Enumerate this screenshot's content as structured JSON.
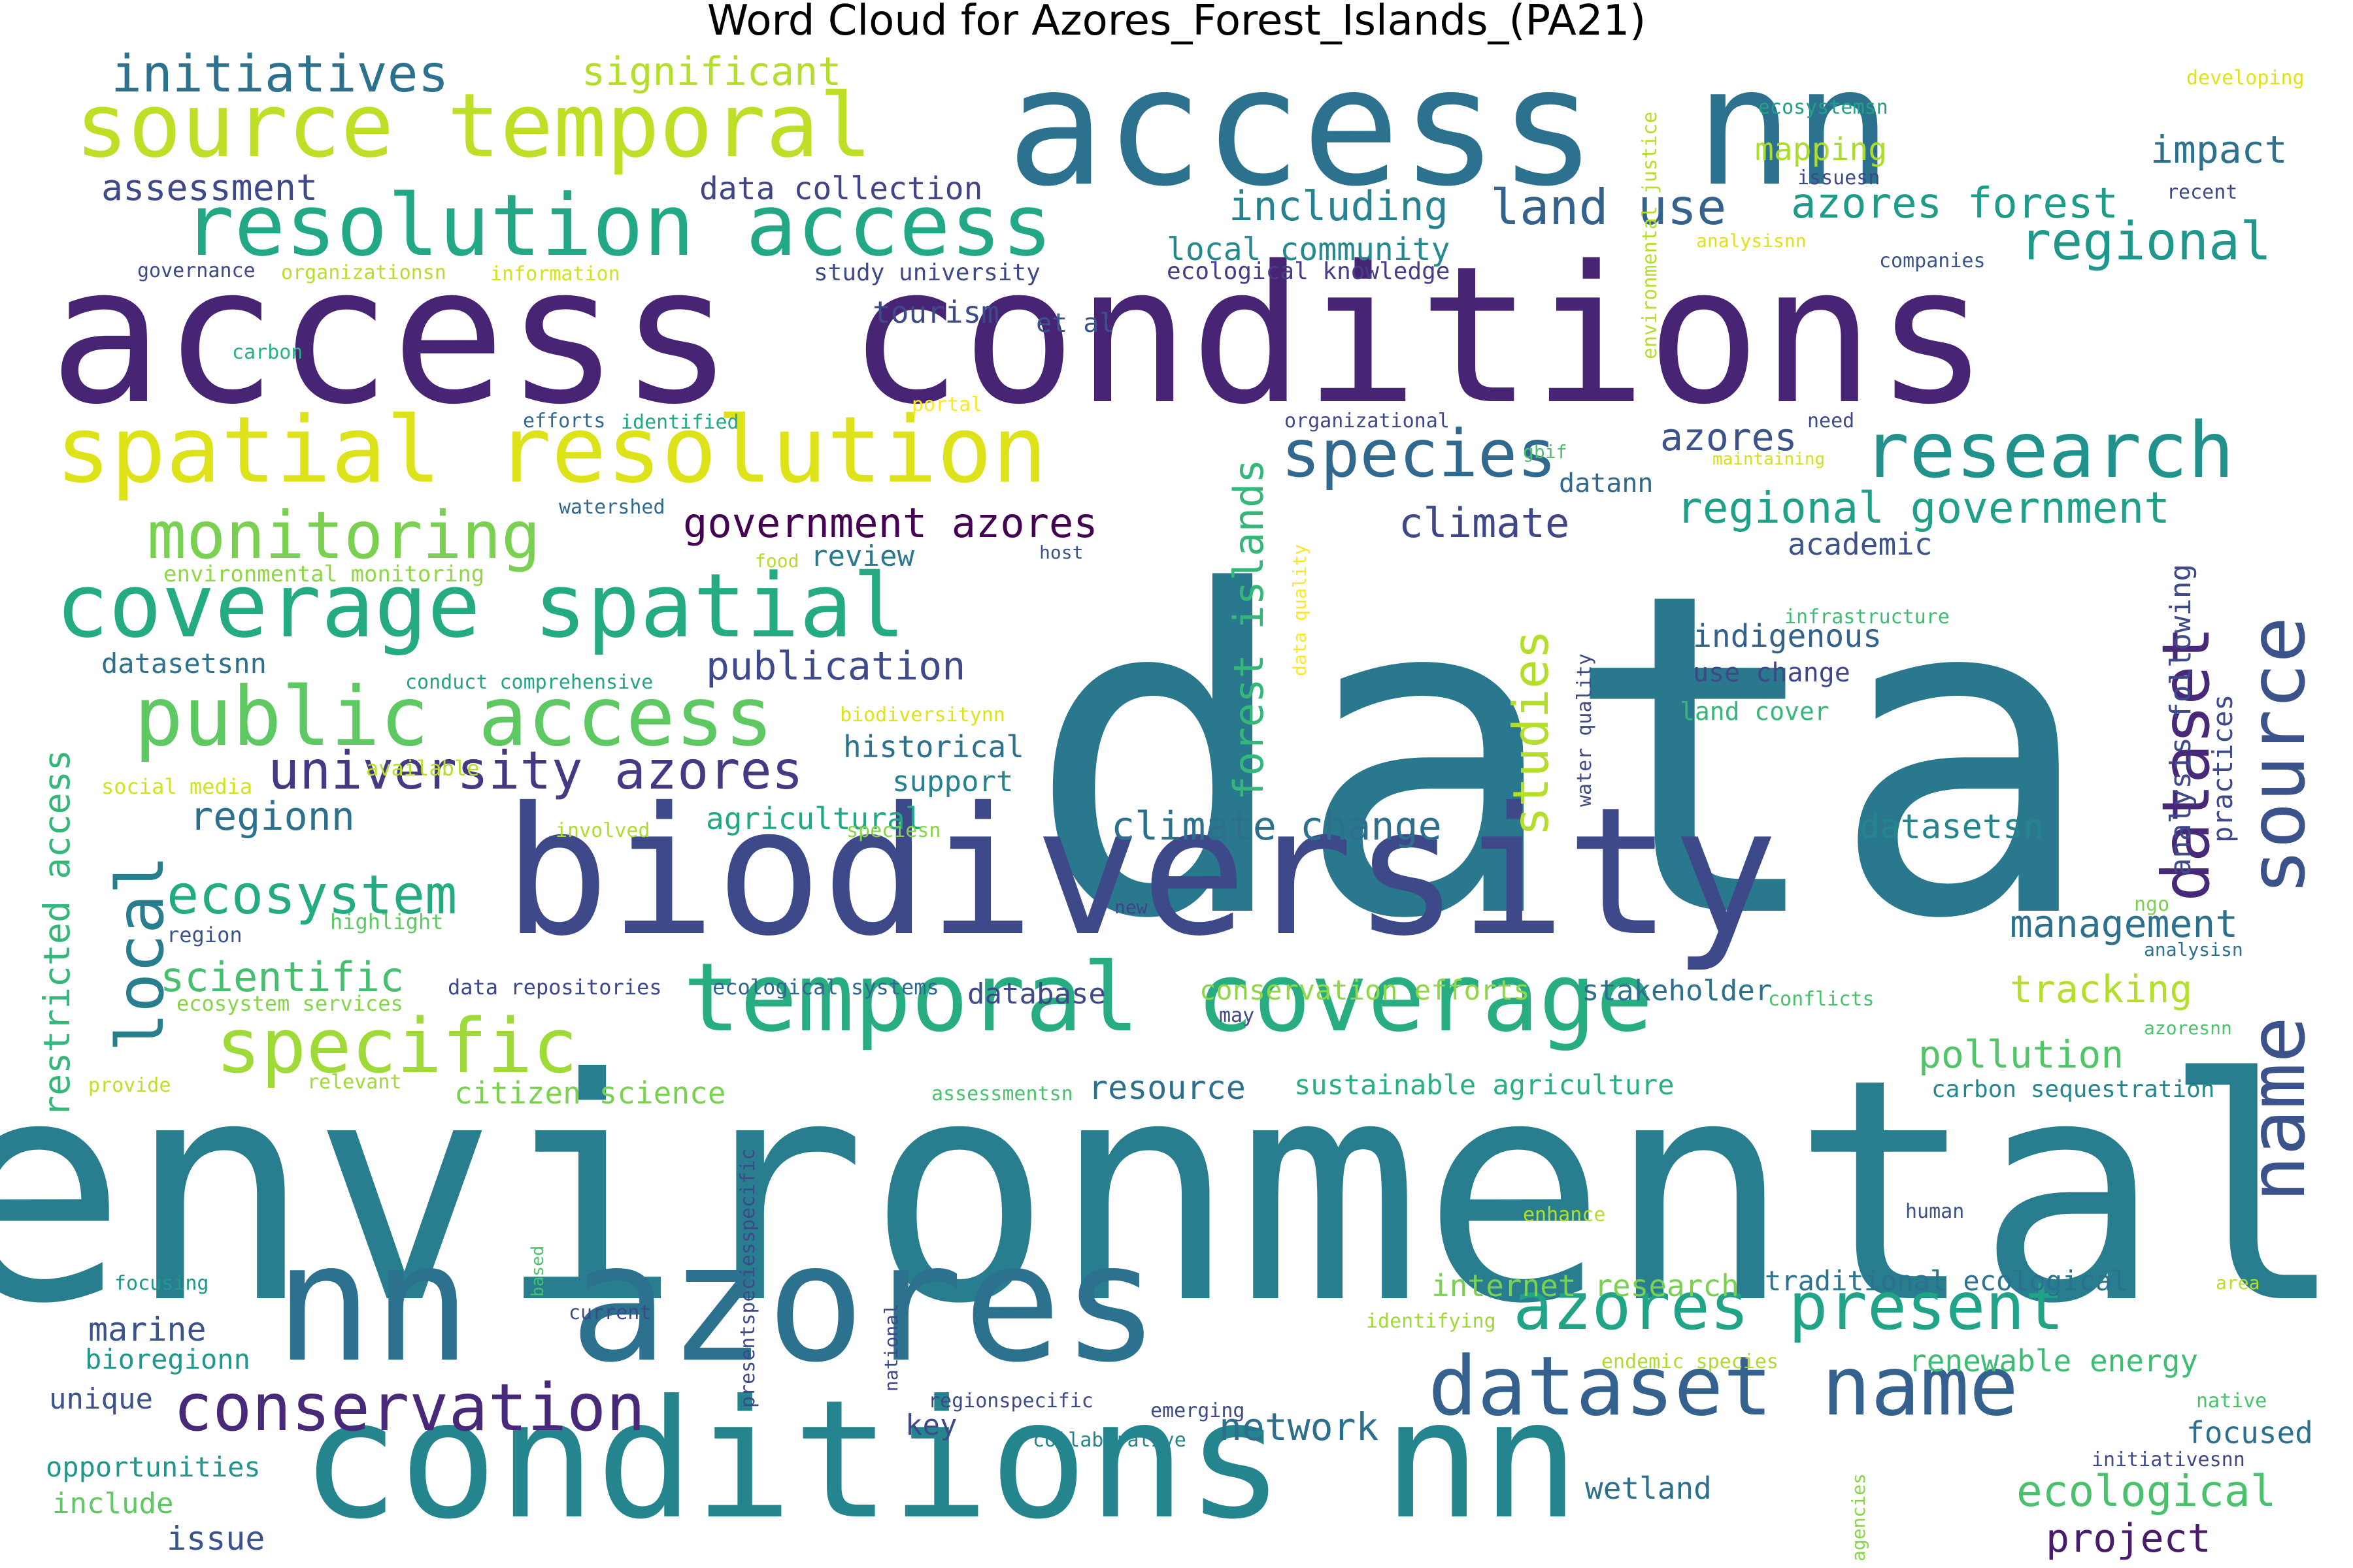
{
  "title": "Word Cloud for Azores_Forest_Islands_(PA21)",
  "words": [
    {
      "text": "data",
      "color": "#2a788e"
    },
    {
      "text": "environmental",
      "color": "#287d8e"
    },
    {
      "text": "access conditions",
      "color": "#482475"
    },
    {
      "text": "access nn",
      "color": "#2c728e"
    },
    {
      "text": "biodiversity",
      "color": "#3e4989"
    },
    {
      "text": "conditions nn",
      "color": "#25858e"
    },
    {
      "text": "nn azores",
      "color": "#2c718e"
    },
    {
      "text": "temporal coverage",
      "color": "#27ad81"
    },
    {
      "text": "spatial resolution",
      "color": "#dde318"
    },
    {
      "text": "resolution access",
      "color": "#22a884"
    },
    {
      "text": "source temporal",
      "color": "#bddf26"
    },
    {
      "text": "coverage spatial",
      "color": "#25ab82"
    },
    {
      "text": "public access",
      "color": "#5ec962"
    },
    {
      "text": "specific",
      "color": "#a0da39"
    },
    {
      "text": "dataset name",
      "color": "#34618d"
    },
    {
      "text": "research",
      "color": "#21918c"
    },
    {
      "text": "source",
      "color": "#3b528b"
    },
    {
      "text": "name",
      "color": "#3b528b"
    },
    {
      "text": "dataset",
      "color": "#482878"
    },
    {
      "text": "monitoring",
      "color": "#7ad151"
    },
    {
      "text": "species",
      "color": "#31688e"
    },
    {
      "text": "conservation",
      "color": "#482878"
    },
    {
      "text": "azores present",
      "color": "#20a386"
    },
    {
      "text": "university azores",
      "color": "#443983"
    },
    {
      "text": "local",
      "color": "#287d8e"
    },
    {
      "text": "ecosystem",
      "color": "#25ab82"
    },
    {
      "text": "initiatives",
      "color": "#2c728e"
    },
    {
      "text": "regional",
      "color": "#1f988b"
    },
    {
      "text": "regional government",
      "color": "#1fa088"
    },
    {
      "text": "government azores",
      "color": "#440154"
    },
    {
      "text": "studies",
      "color": "#b5de2b"
    },
    {
      "text": "forest islands",
      "color": "#35b779"
    },
    {
      "text": "land use",
      "color": "#33638d"
    },
    {
      "text": "azores forest",
      "color": "#1e9c89"
    },
    {
      "text": "significant",
      "color": "#b5de2b"
    },
    {
      "text": "including",
      "color": "#26828e"
    },
    {
      "text": "climate",
      "color": "#3f4788"
    },
    {
      "text": "azores",
      "color": "#3b528b"
    },
    {
      "text": "publication",
      "color": "#3e4a89"
    },
    {
      "text": "climate change",
      "color": "#2d708e"
    },
    {
      "text": "scientific",
      "color": "#46c06f"
    },
    {
      "text": "restricted access",
      "color": "#35b779"
    },
    {
      "text": "regionn",
      "color": "#2d708e"
    },
    {
      "text": "management",
      "color": "#2d708e"
    },
    {
      "text": "pollution",
      "color": "#52c569"
    },
    {
      "text": "tracking",
      "color": "#b5de2b"
    },
    {
      "text": "ecological",
      "color": "#4ac16d"
    },
    {
      "text": "project",
      "color": "#481b6d"
    },
    {
      "text": "network",
      "color": "#2d708e"
    },
    {
      "text": "marine",
      "color": "#3b528b"
    },
    {
      "text": "impact",
      "color": "#2c728e"
    },
    {
      "text": "assessment",
      "color": "#3e4989"
    },
    {
      "text": "mapping",
      "color": "#addc30"
    },
    {
      "text": "data collection",
      "color": "#414487"
    },
    {
      "text": "local community",
      "color": "#23898e"
    },
    {
      "text": "tourism",
      "color": "#3e4989"
    },
    {
      "text": "et al",
      "color": "#3b528b"
    },
    {
      "text": "study university",
      "color": "#3e4989"
    },
    {
      "text": "ecological knowledge",
      "color": "#433e85"
    },
    {
      "text": "review",
      "color": "#2a788e"
    },
    {
      "text": "historical",
      "color": "#2c728e"
    },
    {
      "text": "support",
      "color": "#26828e"
    },
    {
      "text": "agricultural",
      "color": "#22a884"
    },
    {
      "text": "datasetsn",
      "color": "#25858e"
    },
    {
      "text": "indigenous",
      "color": "#33638d"
    },
    {
      "text": "use change",
      "color": "#3f4788"
    },
    {
      "text": "land cover",
      "color": "#35b779"
    },
    {
      "text": "academic",
      "color": "#3b528b"
    },
    {
      "text": "datann",
      "color": "#31688e"
    },
    {
      "text": "analysis following",
      "color": "#3e4989"
    },
    {
      "text": "practices",
      "color": "#3e4989"
    },
    {
      "text": "datasetsnn",
      "color": "#2c728e"
    },
    {
      "text": "database",
      "color": "#3e4989"
    },
    {
      "text": "stakeholder",
      "color": "#2d708e"
    },
    {
      "text": "conservation efforts",
      "color": "#8fd744"
    },
    {
      "text": "resource",
      "color": "#2d708e"
    },
    {
      "text": "sustainable agriculture",
      "color": "#2ab07f"
    },
    {
      "text": "citizen science",
      "color": "#7ad151"
    },
    {
      "text": "carbon sequestration",
      "color": "#23898e"
    },
    {
      "text": "renewable energy",
      "color": "#3fbc73"
    },
    {
      "text": "traditional ecological",
      "color": "#2c728e"
    },
    {
      "text": "internet research",
      "color": "#7ad151"
    },
    {
      "text": "focused",
      "color": "#2d708e"
    },
    {
      "text": "wetland",
      "color": "#2d708e"
    },
    {
      "text": "issue",
      "color": "#3b528b"
    },
    {
      "text": "unique",
      "color": "#3b528b"
    },
    {
      "text": "opportunities",
      "color": "#1f988b"
    },
    {
      "text": "include",
      "color": "#5ec962"
    },
    {
      "text": "bioregionn",
      "color": "#1f988b"
    },
    {
      "text": "key",
      "color": "#3e4989"
    },
    {
      "text": "conduct comprehensive",
      "color": "#20a386"
    },
    {
      "text": "environmental monitoring",
      "color": "#8fd744"
    },
    {
      "text": "social media",
      "color": "#d2e21b"
    },
    {
      "text": "data repositories",
      "color": "#3e4989"
    },
    {
      "text": "ecological systems",
      "color": "#31688e"
    },
    {
      "text": "ecosystem services",
      "color": "#86d549"
    },
    {
      "text": "highlight",
      "color": "#5ec962"
    },
    {
      "text": "region",
      "color": "#3b528b"
    },
    {
      "text": "available",
      "color": "#b5de2b"
    },
    {
      "text": "involved",
      "color": "#addc30"
    },
    {
      "text": "speciesn",
      "color": "#86d549"
    },
    {
      "text": "provide",
      "color": "#c0df25"
    },
    {
      "text": "relevant",
      "color": "#a0da39"
    },
    {
      "text": "assessmentsn",
      "color": "#4ac16d"
    },
    {
      "text": "presentspeciesspecific",
      "color": "#3e4989"
    },
    {
      "text": "biodiversitynn",
      "color": "#dde318"
    },
    {
      "text": "data quality",
      "color": "#fde725"
    },
    {
      "text": "water quality",
      "color": "#3e4989"
    },
    {
      "text": "infrastructure",
      "color": "#3fbc73"
    },
    {
      "text": "analysisn",
      "color": "#2c728e"
    },
    {
      "text": "ngo",
      "color": "#7ad151"
    },
    {
      "text": "azoresnn",
      "color": "#4ac16d"
    },
    {
      "text": "conflicts",
      "color": "#4ac16d"
    },
    {
      "text": "may",
      "color": "#3e4989"
    },
    {
      "text": "new",
      "color": "#414487"
    },
    {
      "text": "host",
      "color": "#3b528b"
    },
    {
      "text": "food",
      "color": "#b5de2b"
    },
    {
      "text": "watershed",
      "color": "#31688e"
    },
    {
      "text": "efforts",
      "color": "#31688e"
    },
    {
      "text": "identified",
      "color": "#22a884"
    },
    {
      "text": "portal",
      "color": "#fde725"
    },
    {
      "text": "carbon",
      "color": "#2ab07f"
    },
    {
      "text": "governance",
      "color": "#3e4989"
    },
    {
      "text": "organizationsn",
      "color": "#b5de2b"
    },
    {
      "text": "information",
      "color": "#d2e21b"
    },
    {
      "text": "organizational",
      "color": "#3e4989"
    },
    {
      "text": "gbif",
      "color": "#4ac16d"
    },
    {
      "text": "maintaining",
      "color": "#d2e21b"
    },
    {
      "text": "need",
      "color": "#3e4989"
    },
    {
      "text": "environmental justice",
      "color": "#b5de2b"
    },
    {
      "text": "ecosystemsn",
      "color": "#1fa088"
    },
    {
      "text": "issuesn",
      "color": "#3e4989"
    },
    {
      "text": "analysisnn",
      "color": "#dde318"
    },
    {
      "text": "companies",
      "color": "#3b528b"
    },
    {
      "text": "recent",
      "color": "#3e4989"
    },
    {
      "text": "developing",
      "color": "#dde318"
    },
    {
      "text": "enhance",
      "color": "#b5de2b"
    },
    {
      "text": "human",
      "color": "#3b528b"
    },
    {
      "text": "area",
      "color": "#b5de2b"
    },
    {
      "text": "focusing",
      "color": "#1f988b"
    },
    {
      "text": "based",
      "color": "#4ac16d"
    },
    {
      "text": "current",
      "color": "#3e4989"
    },
    {
      "text": "national",
      "color": "#3e4989"
    },
    {
      "text": "regionspecific",
      "color": "#3e4989"
    },
    {
      "text": "emerging",
      "color": "#3e4989"
    },
    {
      "text": "collaborative",
      "color": "#25858e"
    },
    {
      "text": "identifying",
      "color": "#a0da39"
    },
    {
      "text": "endemic species",
      "color": "#addc30"
    },
    {
      "text": "native",
      "color": "#4ac16d"
    },
    {
      "text": "initiativesnn",
      "color": "#3e4989"
    },
    {
      "text": "agencies",
      "color": "#86d549"
    }
  ]
}
